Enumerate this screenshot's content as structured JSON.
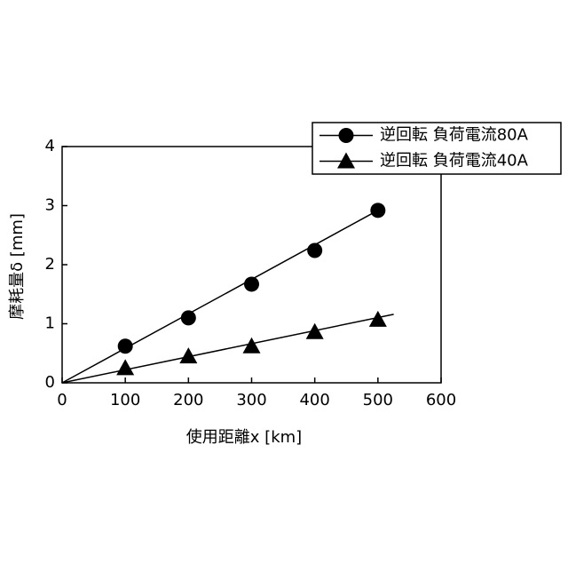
{
  "chart_data": {
    "type": "scatter",
    "x_label": "使用距離x [km]",
    "y_label": "摩耗量δ [mm]",
    "xlim": [
      0,
      600
    ],
    "xticks": [
      0,
      100,
      200,
      300,
      400,
      500,
      600
    ],
    "ylim": [
      0,
      4
    ],
    "yticks": [
      0,
      1,
      2,
      3,
      4
    ],
    "legend": "top-right",
    "series": [
      {
        "name": "逆回転 負荷電流80A",
        "marker": "circle",
        "color": "#000000",
        "x": [
          100,
          200,
          300,
          400,
          500
        ],
        "values": [
          0.62,
          1.1,
          1.67,
          2.24,
          2.92
        ],
        "trendline": {
          "x": [
            0,
            500
          ],
          "y": [
            0,
            2.92
          ]
        }
      },
      {
        "name": "逆回転 負荷電流40A",
        "marker": "triangle",
        "color": "#000000",
        "x": [
          100,
          200,
          300,
          400,
          500
        ],
        "values": [
          0.25,
          0.45,
          0.62,
          0.86,
          1.07
        ],
        "trendline": {
          "x": [
            0,
            525
          ],
          "y": [
            0,
            1.16
          ]
        }
      }
    ]
  }
}
